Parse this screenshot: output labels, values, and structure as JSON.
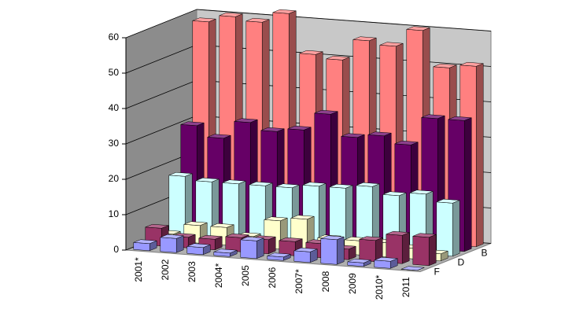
{
  "chart_data": {
    "type": "bar3d",
    "categories": [
      "2001*",
      "2002",
      "2003",
      "2004*",
      "2005",
      "2006",
      "2007*",
      "2008",
      "2009",
      "2010*",
      "2011"
    ],
    "series": [
      {
        "name": "F",
        "color": "#9999ff",
        "values": [
          2,
          4,
          2,
          1,
          5,
          1,
          3,
          7,
          1,
          2,
          0
        ]
      },
      {
        "name": null,
        "color": "#993366",
        "values": [
          5,
          3,
          3,
          4,
          4,
          4,
          4,
          3,
          6,
          8,
          8
        ]
      },
      {
        "name": "D",
        "color": "#ffffcc",
        "values": [
          2,
          5,
          5,
          3,
          8,
          9,
          4,
          4,
          4,
          3,
          2
        ]
      },
      {
        "name": null,
        "color": "#ccffff",
        "values": [
          17,
          16,
          16,
          16,
          16,
          17,
          17,
          18,
          16,
          17,
          15
        ]
      },
      {
        "name": "B",
        "color": "#660066",
        "values": [
          30,
          27,
          32,
          30,
          31,
          36,
          30,
          31,
          29,
          37,
          37
        ]
      },
      {
        "name": null,
        "color": "#ff8080",
        "values": [
          58,
          60,
          59,
          62,
          51,
          50,
          56,
          55,
          60,
          50,
          51
        ]
      }
    ],
    "ylim": [
      0,
      60
    ],
    "yticks": [
      0,
      10,
      20,
      30,
      40,
      50,
      60
    ],
    "grid": true
  }
}
